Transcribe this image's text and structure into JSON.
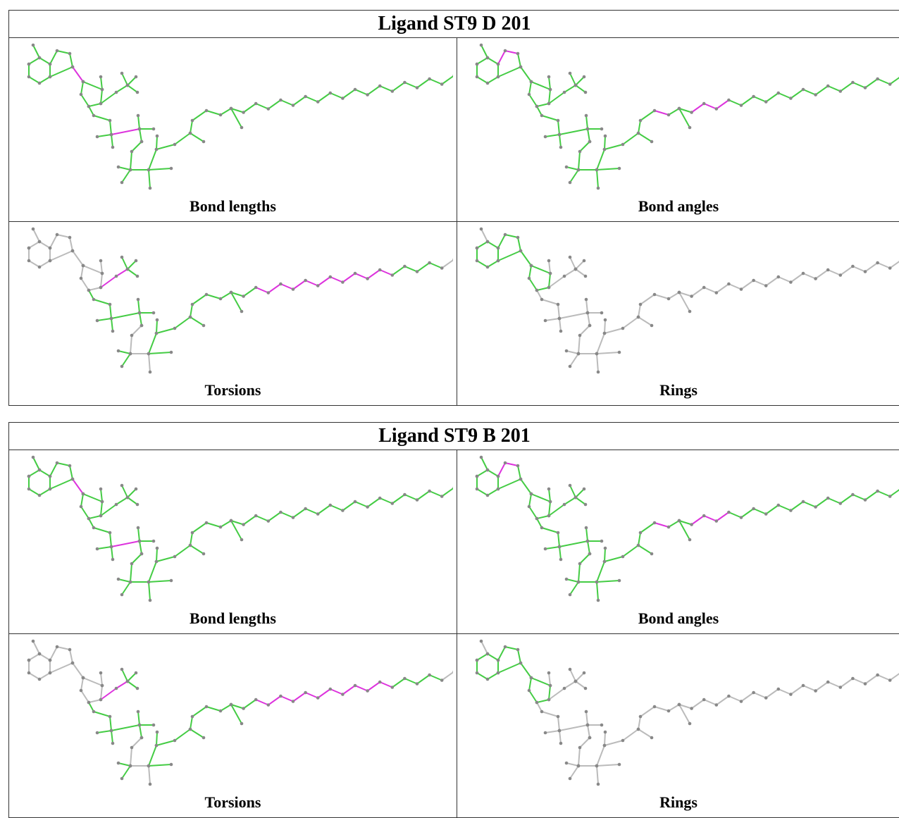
{
  "tables": [
    {
      "title": "Ligand ST9 D 201",
      "panels": [
        {
          "label": "Bond lengths"
        },
        {
          "label": "Bond angles"
        },
        {
          "label": "Torsions"
        },
        {
          "label": "Rings"
        }
      ]
    },
    {
      "title": "Ligand ST9 B 201",
      "panels": [
        {
          "label": "Bond lengths"
        },
        {
          "label": "Bond angles"
        },
        {
          "label": "Torsions"
        },
        {
          "label": "Rings"
        }
      ]
    }
  ]
}
